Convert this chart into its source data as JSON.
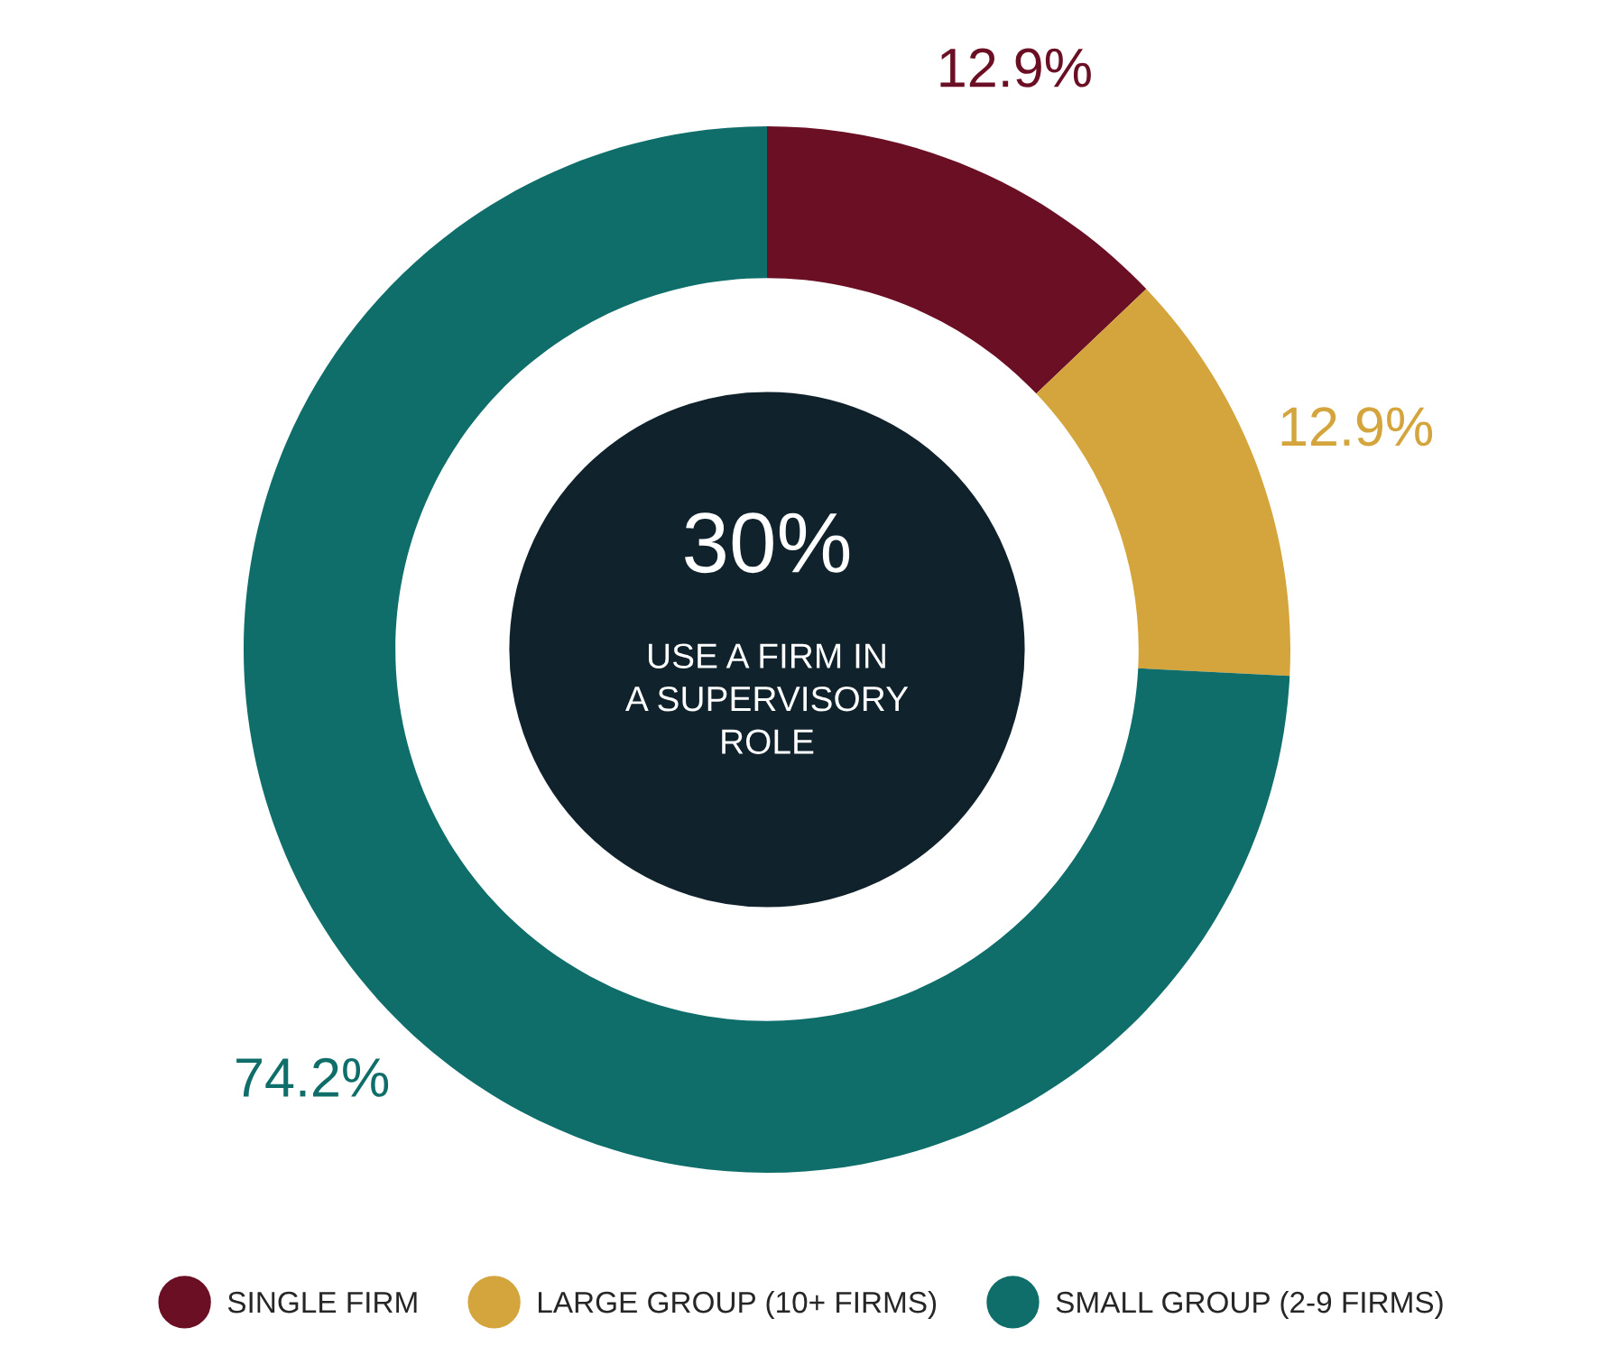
{
  "chart_data": {
    "type": "donut",
    "categories": [
      "SINGLE FIRM",
      "LARGE GROUP (10+ FIRMS)",
      "SMALL GROUP (2-9 FIRMS)"
    ],
    "values": [
      12.9,
      12.9,
      74.2
    ],
    "colors": [
      "#6b0f24",
      "#d4a53c",
      "#0f6e6a"
    ],
    "value_labels": [
      "12.9%",
      "12.9%",
      "74.2%"
    ],
    "annotations": [
      "30%",
      "USE A FIRM IN\nA SUPERVISORY\nROLE"
    ],
    "legend": "bottom"
  }
}
